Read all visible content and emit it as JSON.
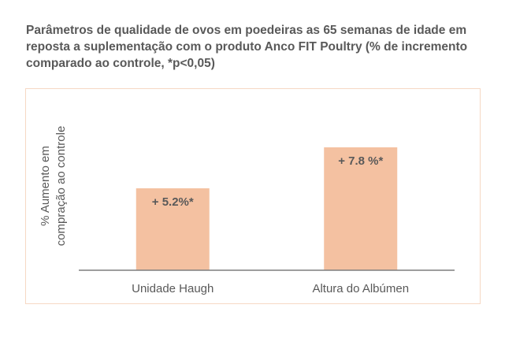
{
  "title_lines": [
    "Parâmetros de qualidade de ovos em poedeiras as 65 semanas de idade em",
    "reposta a suplementação com o produto Anco FIT Poultry (% de incremento",
    "comparado ao controle, *p<0,05)"
  ],
  "chart_data": {
    "type": "bar",
    "categories": [
      "Unidade Haugh",
      "Altura do Albúmen"
    ],
    "values": [
      5.2,
      7.8
    ],
    "data_labels": [
      "+ 5.2%*",
      "+ 7.8 %*"
    ],
    "ylabel_lines": [
      "% Aumento em",
      "compração ao controle"
    ],
    "xlabel": "",
    "ylim": [
      0,
      10
    ],
    "grid": false,
    "legend": "none",
    "bar_color": "#f4c1a1",
    "axis_color": "#7f7f7f"
  }
}
